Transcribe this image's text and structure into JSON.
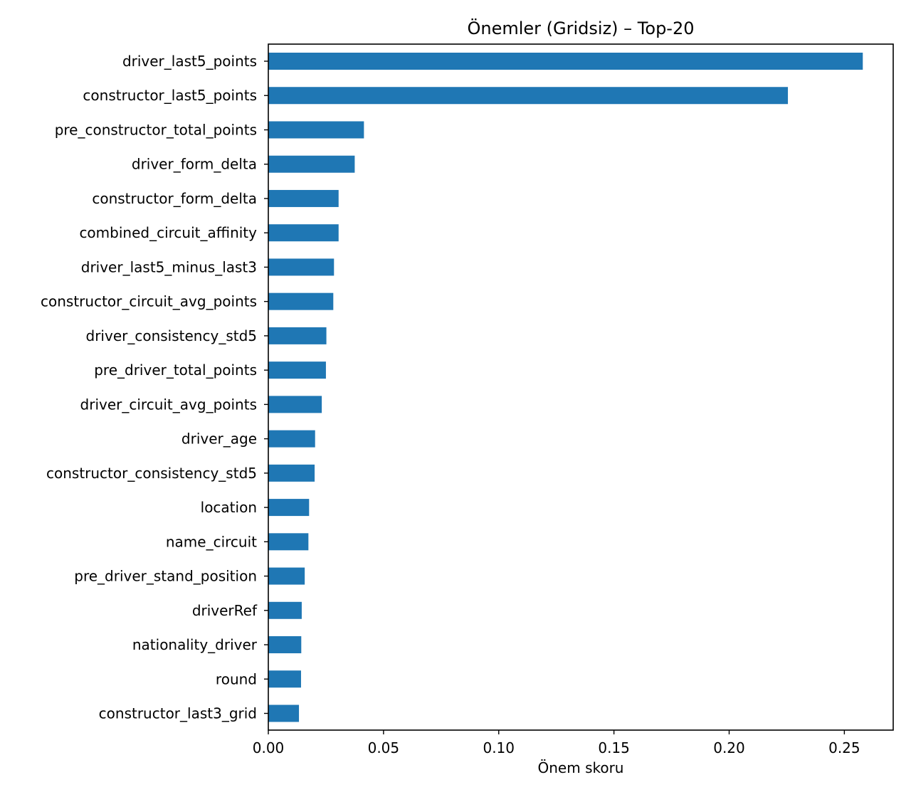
{
  "chart_data": {
    "type": "bar",
    "orientation": "horizontal",
    "title": "Önemler (Gridsiz) – Top-20",
    "xlabel": "Önem skoru",
    "ylabel": "",
    "xlim": [
      0.0,
      0.2712
    ],
    "grid": false,
    "bar_color": "#1f77b4",
    "x_ticks": [
      "0.00",
      "0.05",
      "0.10",
      "0.15",
      "0.20",
      "0.25"
    ],
    "x_tick_values": [
      0.0,
      0.05,
      0.1,
      0.15,
      0.2,
      0.25
    ],
    "categories": [
      "driver_last5_points",
      "constructor_last5_points",
      "pre_constructor_total_points",
      "driver_form_delta",
      "constructor_form_delta",
      "combined_circuit_affinity",
      "driver_last5_minus_last3",
      "constructor_circuit_avg_points",
      "driver_consistency_std5",
      "pre_driver_total_points",
      "driver_circuit_avg_points",
      "driver_age",
      "constructor_consistency_std5",
      "location",
      "name_circuit",
      "pre_driver_stand_position",
      "driverRef",
      "nationality_driver",
      "round",
      "constructor_last3_grid"
    ],
    "values": [
      0.258,
      0.2255,
      0.0415,
      0.0375,
      0.0305,
      0.0305,
      0.0285,
      0.0282,
      0.0252,
      0.025,
      0.0232,
      0.0203,
      0.0201,
      0.0177,
      0.0174,
      0.0158,
      0.0145,
      0.0143,
      0.0142,
      0.0133
    ]
  }
}
